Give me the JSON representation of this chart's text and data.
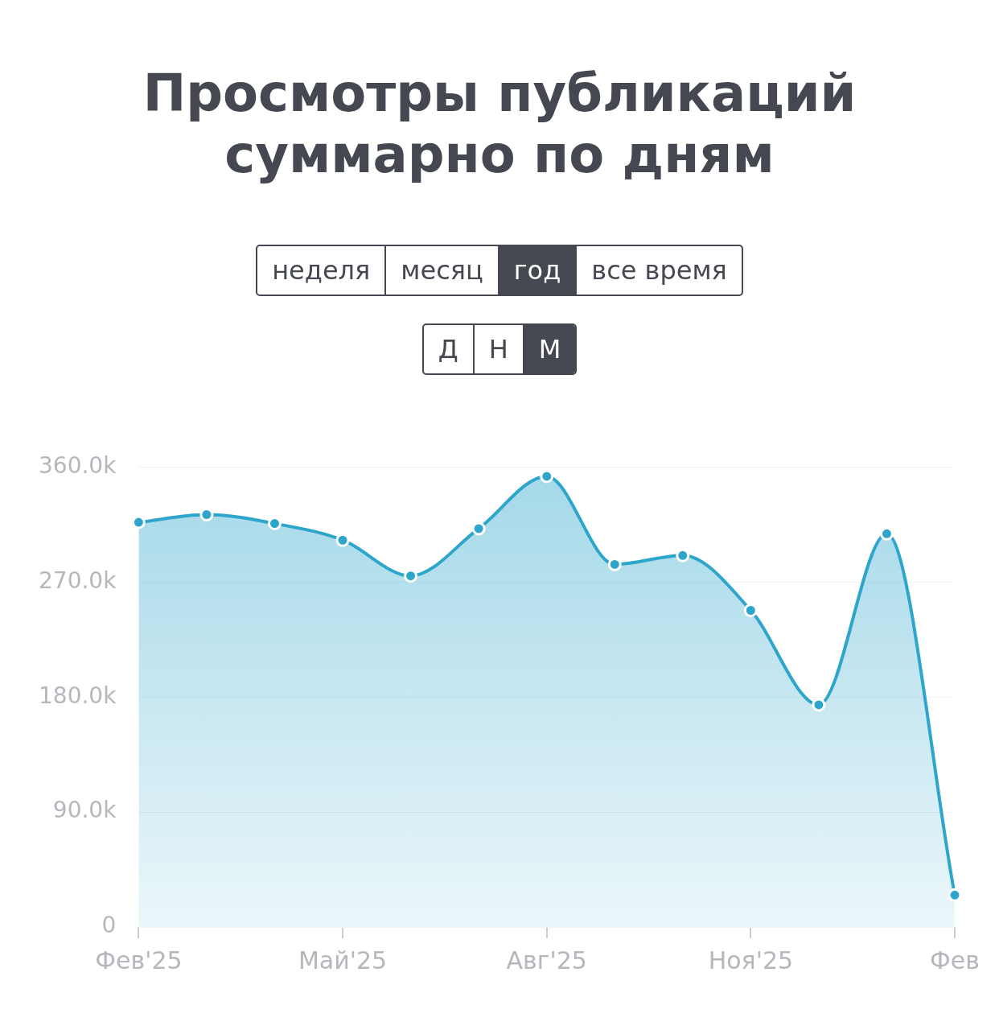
{
  "chart_data": {
    "type": "area",
    "title": "Просмотры публикаций суммарно по дням",
    "categories": [
      "Фев'25",
      null,
      null,
      "Май'25",
      null,
      null,
      "Авг'25",
      null,
      null,
      "Ноя'25",
      null,
      null,
      "Фев"
    ],
    "series": [
      {
        "color": "#2ea6cc",
        "values": [
          317000,
          323000,
          316000,
          303000,
          275000,
          312000,
          353000,
          284000,
          291000,
          248000,
          174000,
          308000,
          25000
        ]
      }
    ],
    "ylim": [
      0,
      360000
    ],
    "yticks": [
      {
        "value": 0,
        "label": "0"
      },
      {
        "value": 90000,
        "label": "90.0k"
      },
      {
        "value": 180000,
        "label": "180.0k"
      },
      {
        "value": 270000,
        "label": "270.0k"
      },
      {
        "value": 360000,
        "label": "360.0k"
      }
    ],
    "grid": "y",
    "marker": "circle",
    "legend": false,
    "annotations": [
      "неделя",
      "месяц",
      "год",
      "все время",
      "Д",
      "Н",
      "М"
    ]
  }
}
